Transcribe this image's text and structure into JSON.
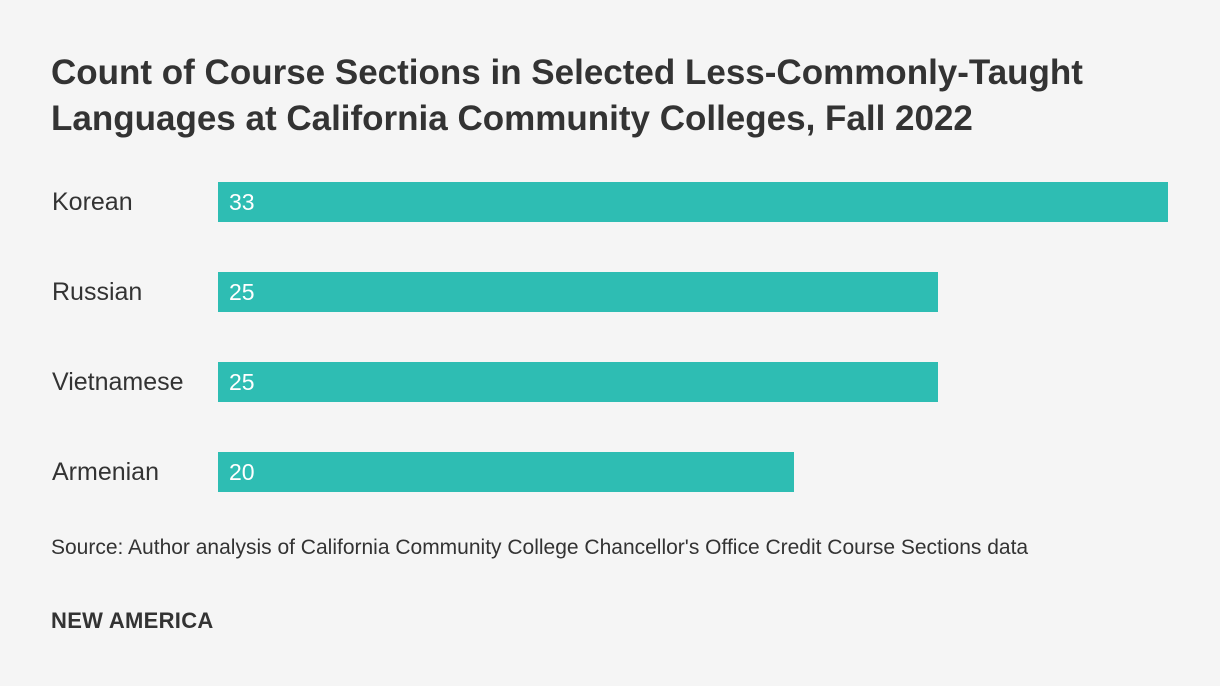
{
  "chart_data": {
    "type": "bar",
    "orientation": "horizontal",
    "title": "Count of Course Sections in Selected Less-Commonly-Taught Languages at California Community Colleges, Fall 2022",
    "categories": [
      "Korean",
      "Russian",
      "Vietnamese",
      "Armenian"
    ],
    "values": [
      33,
      25,
      25,
      20
    ],
    "xlabel": "",
    "ylabel": "",
    "xlim": [
      0,
      33
    ],
    "grid": false,
    "legend": "none",
    "bar_color": "#2ebdb3",
    "label_color": "#ffffff"
  },
  "source": "Source: Author analysis of California Community College Chancellor's Office Credit Course Sections data",
  "brand": "NEW AMERICA"
}
